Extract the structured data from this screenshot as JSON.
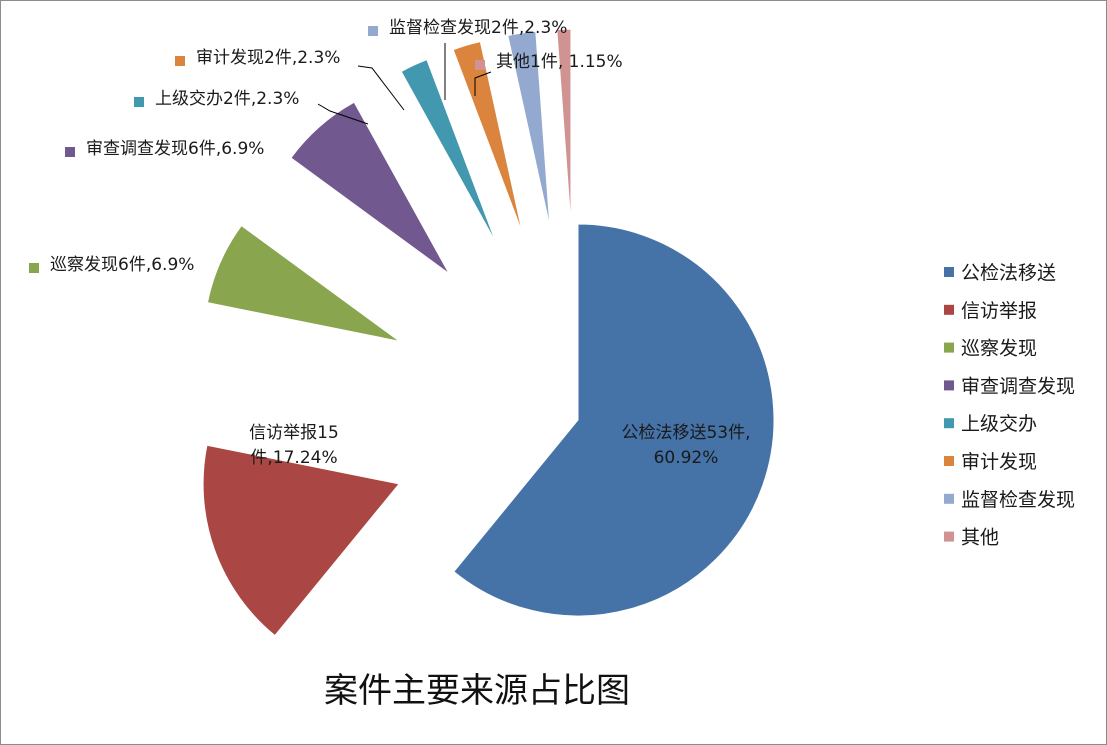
{
  "chart_data": {
    "type": "pie",
    "title": "案件主要来源占比图",
    "unit": "件",
    "legend_position": "right",
    "slices": [
      {
        "name": "公检法移送",
        "value": 53,
        "percent": "60.92%",
        "label": "公检法移送53件,60.92%",
        "color": "#4572A7"
      },
      {
        "name": "信访举报",
        "value": 15,
        "percent": "17.24%",
        "label": "信访举报15件,17.24%",
        "color": "#AA4643"
      },
      {
        "name": "巡察发现",
        "value": 6,
        "percent": "6.9%",
        "label": "巡察发现6件,6.9%",
        "color": "#89A54E"
      },
      {
        "name": "审查调查发现",
        "value": 6,
        "percent": "6.9%",
        "label": "审查调查发现6件,6.9%",
        "color": "#71588F"
      },
      {
        "name": "上级交办",
        "value": 2,
        "percent": "2.3%",
        "label": "上级交办2件,2.3%",
        "color": "#4198AF"
      },
      {
        "name": "审计发现",
        "value": 2,
        "percent": "2.3%",
        "label": "审计发现2件,2.3%",
        "color": "#DB843D"
      },
      {
        "name": "监督检查发现",
        "value": 2,
        "percent": "2.3%",
        "label": "监督检查发现2件,2.3%",
        "color": "#93A9CF"
      },
      {
        "name": "其他",
        "value": 1,
        "percent": "1.15%",
        "label": "其他1件, 1.15%",
        "color": "#D19392"
      }
    ]
  }
}
